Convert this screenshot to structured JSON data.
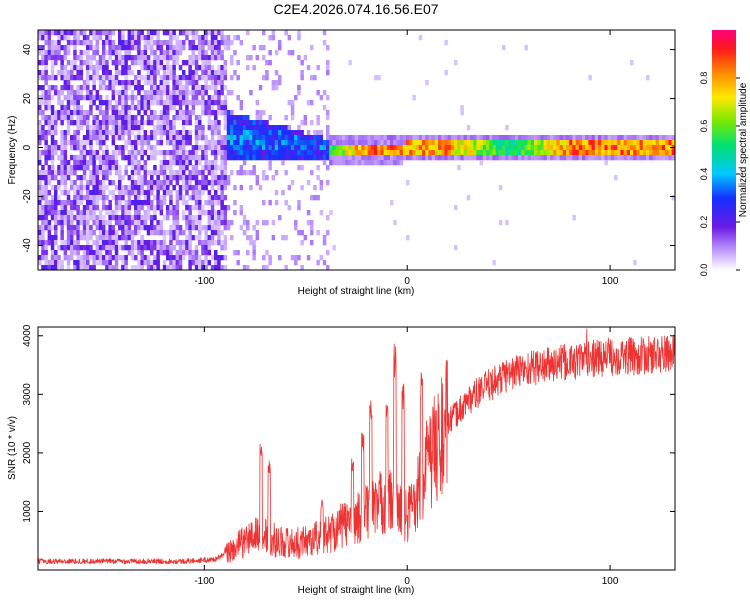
{
  "title": "C2E4.2026.074.16.56.E07",
  "colors": {
    "snr_line": "#ee3333",
    "frame": "#000000",
    "background": "#ffffff"
  },
  "chart_data": [
    {
      "type": "heatmap",
      "name": "spectrogram",
      "xlabel": "Height of straight line (km)",
      "ylabel": "Frequency (Hz)",
      "xlim": [
        -182,
        132
      ],
      "ylim": [
        -50,
        48
      ],
      "x_ticks": [
        -100,
        0,
        100
      ],
      "y_ticks": [
        -40,
        -20,
        0,
        20,
        40
      ],
      "colorbar": {
        "label": "Normalized spectral amplitude",
        "range": [
          0,
          1
        ],
        "ticks": [
          "0.0",
          "0.2",
          "0.4",
          "0.6",
          "0.8"
        ],
        "tick_values": [
          0,
          0.2,
          0.4,
          0.6,
          0.8
        ],
        "colormap": "rainbow (white-violet-blue-cyan-green-yellow-orange-red-magenta)"
      },
      "features": {
        "noise_region_x": [
          -182,
          -90
        ],
        "noise_region_amplitude": 0.15,
        "transition_region_x": [
          -90,
          -40
        ],
        "signal_line": {
          "x": [
            -90,
            -75,
            -60,
            -45,
            -35,
            -20,
            0,
            20,
            50,
            80,
            100,
            115,
            132
          ],
          "freq_hz": [
            6,
            4,
            3,
            1,
            0,
            0,
            0.5,
            0.5,
            1,
            1.5,
            1.5,
            1.5,
            1.5
          ],
          "peak_amplitude": [
            0.45,
            0.5,
            0.45,
            0.4,
            0.7,
            0.95,
            0.9,
            0.9,
            0.55,
            0.95,
            0.95,
            0.9,
            0.95
          ]
        }
      }
    },
    {
      "type": "line",
      "name": "snr",
      "xlabel": "Height of straight line (km)",
      "ylabel": "SNR (10 * v/v)",
      "xlim": [
        -182,
        132
      ],
      "ylim": [
        0,
        4150
      ],
      "x_ticks": [
        -100,
        0,
        100
      ],
      "y_ticks": [
        1000,
        2000,
        3000,
        4000
      ],
      "trend": {
        "x": [
          -182,
          -150,
          -110,
          -95,
          -88,
          -80,
          -72,
          -65,
          -55,
          -45,
          -40,
          -30,
          -20,
          -10,
          0,
          10,
          20,
          30,
          40,
          50,
          60,
          80,
          100,
          115,
          132
        ],
        "snr": [
          150,
          150,
          150,
          180,
          300,
          500,
          650,
          500,
          450,
          550,
          600,
          800,
          1000,
          1200,
          900,
          1800,
          2500,
          2900,
          3150,
          3350,
          3450,
          3550,
          3650,
          3650,
          3700
        ]
      },
      "spikes": [
        {
          "x": -72,
          "snr": 2150
        },
        {
          "x": -68,
          "snr": 1900
        },
        {
          "x": -42,
          "snr": 1200
        },
        {
          "x": -27,
          "snr": 1900
        },
        {
          "x": -22,
          "snr": 2400
        },
        {
          "x": -18,
          "snr": 3000
        },
        {
          "x": -10,
          "snr": 3000
        },
        {
          "x": -6,
          "snr": 3880
        },
        {
          "x": -2,
          "snr": 3200
        },
        {
          "x": 7,
          "snr": 3450
        },
        {
          "x": 88,
          "snr": 4130
        }
      ]
    }
  ]
}
